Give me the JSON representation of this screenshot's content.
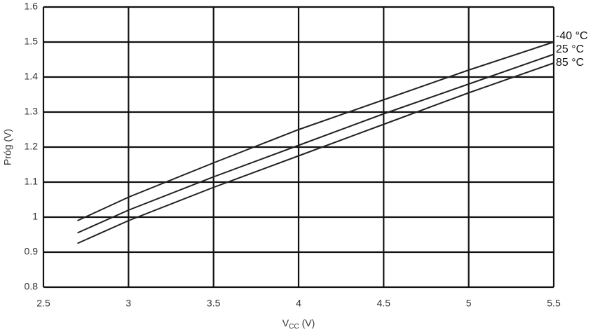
{
  "chart_data": {
    "type": "line",
    "ylabel": "Próg (V)",
    "xlabel": {
      "main": "V",
      "sub": "CC",
      "unit": "(V)"
    },
    "x": [
      2.7,
      3,
      3.5,
      4,
      4.5,
      5,
      5.5
    ],
    "series": [
      {
        "name": "-40 °C",
        "color": "#222222",
        "values": [
          0.99,
          1.057,
          1.155,
          1.25,
          1.335,
          1.42,
          1.5
        ]
      },
      {
        "name": "25 °C",
        "color": "#222222",
        "values": [
          0.955,
          1.02,
          1.115,
          1.205,
          1.295,
          1.38,
          1.465
        ]
      },
      {
        "name": "85 °C",
        "color": "#222222",
        "values": [
          0.925,
          0.99,
          1.085,
          1.175,
          1.265,
          1.355,
          1.44
        ]
      }
    ],
    "xlim": [
      2.5,
      5.5
    ],
    "xticks": [
      2.5,
      3,
      3.5,
      4,
      4.5,
      5,
      5.5
    ],
    "ylim": [
      0.8,
      1.6
    ],
    "yticks": [
      0.8,
      0.9,
      1,
      1.1,
      1.2,
      1.3,
      1.4,
      1.5,
      1.6
    ],
    "grid": true
  }
}
